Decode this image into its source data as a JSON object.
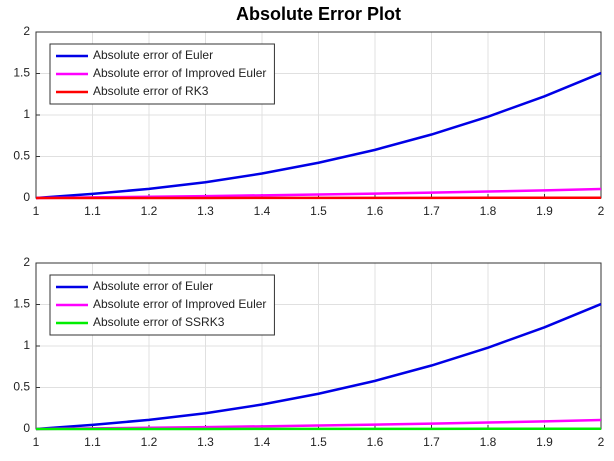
{
  "chart_data": [
    {
      "type": "line",
      "title": "Absolute Error Plot",
      "x": [
        1,
        1.1,
        1.2,
        1.3,
        1.4,
        1.5,
        1.6,
        1.7,
        1.8,
        1.9,
        2
      ],
      "series": [
        {
          "name": "Absolute error of Euler",
          "color": "#0000e6",
          "values": [
            0,
            0.05,
            0.11,
            0.19,
            0.295,
            0.425,
            0.58,
            0.765,
            0.98,
            1.225,
            1.505
          ]
        },
        {
          "name": "Absolute error of Improved Euler",
          "color": "#ff00ff",
          "values": [
            0,
            0.007,
            0.015,
            0.023,
            0.032,
            0.042,
            0.053,
            0.065,
            0.078,
            0.092,
            0.108
          ]
        },
        {
          "name": "Absolute error of RK3",
          "color": "#ff0000",
          "values": [
            0,
            0.0002,
            0.0004,
            0.0007,
            0.001,
            0.0013,
            0.0017,
            0.0021,
            0.0026,
            0.0031,
            0.0037
          ]
        }
      ],
      "xlim": [
        1,
        2
      ],
      "xticks": [
        1,
        1.1,
        1.2,
        1.3,
        1.4,
        1.5,
        1.6,
        1.7,
        1.8,
        1.9,
        2
      ],
      "ylim": [
        0,
        2
      ],
      "yticks": [
        0,
        0.5,
        1,
        1.5,
        2
      ],
      "grid": true,
      "legend": "upper left"
    },
    {
      "type": "line",
      "x": [
        1,
        1.1,
        1.2,
        1.3,
        1.4,
        1.5,
        1.6,
        1.7,
        1.8,
        1.9,
        2
      ],
      "series": [
        {
          "name": "Absolute error of Euler",
          "color": "#0000e6",
          "values": [
            0,
            0.05,
            0.11,
            0.19,
            0.295,
            0.425,
            0.58,
            0.765,
            0.98,
            1.225,
            1.505
          ]
        },
        {
          "name": "Absolute error of Improved Euler",
          "color": "#ff00ff",
          "values": [
            0,
            0.007,
            0.015,
            0.023,
            0.032,
            0.042,
            0.053,
            0.065,
            0.078,
            0.092,
            0.108
          ]
        },
        {
          "name": "Absolute error of SSRK3",
          "color": "#00ee00",
          "values": [
            0,
            0.0002,
            0.0004,
            0.0007,
            0.001,
            0.0013,
            0.0017,
            0.0021,
            0.0026,
            0.0031,
            0.0037
          ]
        }
      ],
      "xlim": [
        1,
        2
      ],
      "xticks": [
        1,
        1.1,
        1.2,
        1.3,
        1.4,
        1.5,
        1.6,
        1.7,
        1.8,
        1.9,
        2
      ],
      "ylim": [
        0,
        2
      ],
      "yticks": [
        0,
        0.5,
        1,
        1.5,
        2
      ],
      "grid": true,
      "legend": "upper left"
    }
  ]
}
